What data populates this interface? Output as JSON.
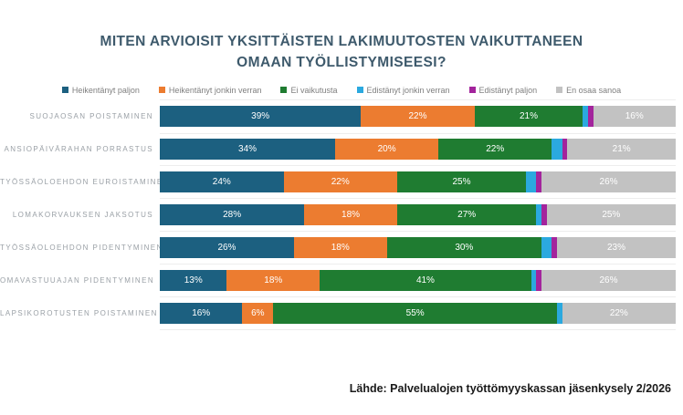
{
  "chart_data": {
    "type": "bar",
    "orientation": "horizontal-stacked",
    "title": "MITEN ARVIOISIT YKSITTÄISTEN LAKIMUUTOSTEN VAIKUTTANEEN OMAAN TYÖLLISTYMISEESI?",
    "legend_position": "top",
    "xlim": [
      0,
      100
    ],
    "value_suffix": "%",
    "label_min_value": 5,
    "categories": [
      "SUOJAOSAN POISTAMINEN",
      "ANSIOPÄIVÄRAHAN PORRASTUS",
      "TYÖSSÄOLOEHDON EUROISTAMINEN",
      "LOMAKORVAUKSEN JAKSOTUS",
      "TYÖSSÄOLOEHDON PIDENTYMINEN",
      "OMAVASTUUAJAN PIDENTYMINEN",
      "LAPSIKOROTUSTEN POISTAMINEN"
    ],
    "series": [
      {
        "name": "Heikentänyt paljon",
        "color": "#1c6080",
        "values": [
          39,
          34,
          24,
          28,
          26,
          13,
          16
        ]
      },
      {
        "name": "Heikentänyt jonkin verran",
        "color": "#ec7c30",
        "values": [
          22,
          20,
          22,
          18,
          18,
          18,
          6
        ]
      },
      {
        "name": "Ei vaikutusta",
        "color": "#1f7c31",
        "values": [
          21,
          22,
          25,
          27,
          30,
          41,
          55
        ]
      },
      {
        "name": "Edistänyt jonkin verran",
        "color": "#2ba9df",
        "values": [
          1,
          2,
          2,
          1,
          2,
          1,
          1
        ]
      },
      {
        "name": "Edistänyt paljon",
        "color": "#a3249c",
        "values": [
          1,
          1,
          1,
          1,
          1,
          1,
          0
        ]
      },
      {
        "name": "En osaa sanoa",
        "color": "#c2c2c2",
        "values": [
          16,
          21,
          26,
          25,
          23,
          26,
          22
        ]
      }
    ],
    "source": "Lähde: Palvelualojen työttömyyskassan jäsenkysely 2/2026"
  }
}
